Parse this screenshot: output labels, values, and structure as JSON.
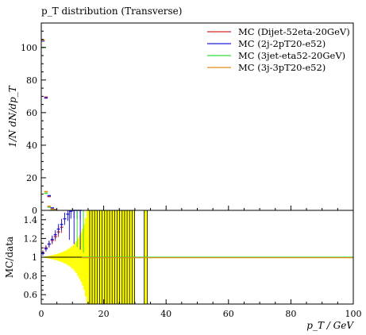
{
  "title": "p_T distribution (Transverse)",
  "chart_data": [
    {
      "type": "scatter",
      "panel": "main",
      "ylabel": "1/N dN/dp_T",
      "xlim": [
        0,
        100
      ],
      "ylim": [
        0,
        115
      ],
      "yticks": [
        "0",
        "20",
        "40",
        "60",
        "80",
        "100"
      ],
      "series": [
        {
          "name": "MC (Dijet-52eta-20GeV)",
          "color": "#d62728",
          "points": [
            [
              0.5,
              104.5
            ],
            [
              1.5,
              69.5
            ],
            [
              2.5,
              8.5
            ],
            [
              3.5,
              1.2
            ],
            [
              4.5,
              0.4
            ]
          ]
        },
        {
          "name": "MC (2j-2pT20-e52)",
          "color": "#1f1fd8",
          "points": [
            [
              0.5,
              104.0
            ],
            [
              1.5,
              69.0
            ],
            [
              2.5,
              9.0
            ],
            [
              3.5,
              1.5
            ],
            [
              4.5,
              0.5
            ]
          ]
        },
        {
          "name": "MC (3jet-eta52-20GeV)",
          "color": "#33dd33",
          "points": [
            [
              0.5,
              100.0
            ],
            [
              1.5,
              10.5
            ],
            [
              2.5,
              2.0
            ],
            [
              3.5,
              0.6
            ],
            [
              4.5,
              0.2
            ]
          ]
        },
        {
          "name": "MC (3j-3pT20-e52)",
          "color": "#e08a17",
          "points": [
            [
              0.5,
              104.5
            ],
            [
              1.5,
              11.5
            ],
            [
              2.5,
              2.5
            ],
            [
              3.5,
              0.8
            ],
            [
              4.5,
              0.3
            ]
          ]
        }
      ]
    },
    {
      "type": "scatter",
      "panel": "ratio",
      "xlabel": "p_T / GeV",
      "ylabel": "MC/data",
      "xlim": [
        0,
        100
      ],
      "ylim": [
        0.5,
        1.5
      ],
      "xticks": [
        "0",
        "20",
        "40",
        "60",
        "80",
        "100"
      ],
      "yticks": [
        "0.6",
        "0.8",
        "1",
        "1.2",
        "1.4"
      ],
      "reference_line": 1.0,
      "data_uncertainty_band": {
        "color": "#ffff00",
        "bins": [
          [
            0,
            0.5,
            0.003
          ],
          [
            0.5,
            1,
            0.005
          ],
          [
            1,
            1.5,
            0.008
          ],
          [
            1.5,
            2,
            0.01
          ],
          [
            2,
            2.5,
            0.013
          ],
          [
            2.5,
            3,
            0.016
          ],
          [
            3,
            3.5,
            0.02
          ],
          [
            3.5,
            4,
            0.024
          ],
          [
            4,
            4.5,
            0.028
          ],
          [
            4.5,
            5,
            0.032
          ],
          [
            5,
            5.5,
            0.037
          ],
          [
            5.5,
            6,
            0.042
          ],
          [
            6,
            6.5,
            0.048
          ],
          [
            6.5,
            7,
            0.055
          ],
          [
            7,
            7.5,
            0.062
          ],
          [
            7.5,
            8,
            0.07
          ],
          [
            8,
            8.5,
            0.08
          ],
          [
            8.5,
            9,
            0.09
          ],
          [
            9,
            9.5,
            0.1
          ],
          [
            9.5,
            10,
            0.115
          ],
          [
            10,
            10.5,
            0.13
          ],
          [
            10.5,
            11,
            0.15
          ],
          [
            11,
            11.5,
            0.17
          ],
          [
            11.5,
            12,
            0.2
          ],
          [
            12,
            12.5,
            0.23
          ],
          [
            12.5,
            13,
            0.26
          ],
          [
            13,
            13.5,
            0.3
          ],
          [
            13.5,
            14,
            0.35
          ],
          [
            14,
            14.5,
            0.42
          ],
          [
            14.5,
            15,
            0.5
          ],
          [
            15,
            15.5,
            0.6
          ],
          [
            15.5,
            30,
            1.0
          ],
          [
            33,
            34,
            1.0
          ]
        ]
      },
      "series": [
        {
          "name": "MC (Dijet-52eta-20GeV)",
          "color": "#d62728",
          "points": [
            [
              0.5,
              1.05
            ],
            [
              1.5,
              1.1
            ],
            [
              2.5,
              1.14
            ],
            [
              3.5,
              1.18
            ],
            [
              4.5,
              1.22
            ],
            [
              5.5,
              1.27
            ],
            [
              6.5,
              1.32
            ]
          ]
        },
        {
          "name": "MC (2j-2pT20-e52)",
          "color": "#1f1fd8",
          "points": [
            [
              0.5,
              1.04
            ],
            [
              1.5,
              1.09
            ],
            [
              2.5,
              1.14
            ],
            [
              3.5,
              1.19
            ],
            [
              4.5,
              1.24
            ],
            [
              5.5,
              1.3
            ],
            [
              6.5,
              1.35
            ],
            [
              7.5,
              1.41
            ],
            [
              8.5,
              1.46
            ],
            [
              9.5,
              1.49
            ],
            [
              10.5,
              1.5
            ],
            [
              11.5,
              1.5
            ],
            [
              12.5,
              1.5
            ]
          ]
        },
        {
          "name": "MC (3jet-eta52-20GeV)",
          "color": "#33dd33",
          "points": [
            [
              13.5,
              1.0
            ],
            [
              14.5,
              1.0
            ],
            [
              15.5,
              1.0
            ],
            [
              20.5,
              1.0
            ],
            [
              25.5,
              1.0
            ],
            [
              30.5,
              1.0
            ],
            [
              40,
              1.0
            ],
            [
              60,
              1.0
            ],
            [
              80,
              1.0
            ],
            [
              100,
              1.0
            ]
          ]
        },
        {
          "name": "MC (3j-3pT20-e52)",
          "color": "#e08a17",
          "points": [
            [
              13.5,
              1.0
            ],
            [
              14.5,
              1.0
            ],
            [
              15.5,
              1.0
            ],
            [
              20.5,
              1.0
            ],
            [
              25.5,
              1.0
            ],
            [
              30.5,
              1.0
            ],
            [
              40,
              1.0
            ],
            [
              60,
              1.0
            ],
            [
              80,
              1.0
            ],
            [
              100,
              1.0
            ]
          ]
        }
      ]
    }
  ]
}
